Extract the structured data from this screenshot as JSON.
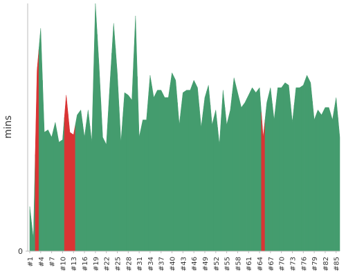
{
  "chart_data": {
    "type": "area",
    "y_label": "mins",
    "categories": [
      "#1",
      null,
      null,
      "#4",
      null,
      null,
      "#7",
      null,
      null,
      "#10",
      null,
      null,
      "#13",
      null,
      null,
      "#16",
      null,
      null,
      "#19",
      null,
      null,
      "#22",
      null,
      null,
      "#25",
      null,
      null,
      "#28",
      null,
      null,
      "#31",
      null,
      null,
      "#34",
      null,
      null,
      "#37",
      null,
      null,
      "#40",
      null,
      null,
      "#43",
      null,
      null,
      "#46",
      null,
      null,
      "#49",
      null,
      null,
      "#52",
      null,
      null,
      "#55",
      null,
      null,
      "#58",
      null,
      null,
      "#61",
      null,
      null,
      "#64",
      null,
      null,
      "#67",
      null,
      null,
      "#70",
      null,
      null,
      "#73",
      null,
      null,
      "#76",
      null,
      null,
      "#79",
      null,
      null,
      "#82",
      null,
      null,
      "#85",
      null
    ],
    "values": [
      18,
      5,
      73,
      90,
      48,
      49,
      46,
      52,
      44,
      45,
      63,
      48,
      47,
      55,
      57,
      46,
      57,
      44,
      100,
      75,
      46,
      43,
      68,
      92,
      72,
      44,
      64,
      63,
      61,
      95,
      46,
      53,
      53,
      71,
      62,
      65,
      65,
      62,
      62,
      72,
      69,
      51,
      64,
      65,
      65,
      69,
      66,
      50,
      62,
      67,
      51,
      57,
      43,
      65,
      51,
      57,
      70,
      64,
      58,
      60,
      63,
      66,
      64,
      66,
      46,
      60,
      66,
      53,
      66,
      66,
      68,
      67,
      52,
      66,
      66,
      67,
      71,
      68,
      53,
      57,
      55,
      58,
      58,
      53,
      62,
      46
    ],
    "point_colors": [
      "#449c6e",
      "#449c6e",
      "#d93434",
      "#449c6e",
      "#449c6e",
      "#449c6e",
      "#449c6e",
      "#449c6e",
      "#449c6e",
      "#449c6e",
      "#d93434",
      "#d93434",
      "#d93434",
      "#449c6e",
      "#449c6e",
      "#449c6e",
      "#449c6e",
      "#449c6e",
      "#449c6e",
      "#449c6e",
      "#449c6e",
      "#449c6e",
      "#449c6e",
      "#449c6e",
      "#449c6e",
      "#449c6e",
      "#449c6e",
      "#449c6e",
      "#449c6e",
      "#449c6e",
      "#449c6e",
      "#449c6e",
      "#449c6e",
      "#449c6e",
      "#449c6e",
      "#449c6e",
      "#449c6e",
      "#449c6e",
      "#449c6e",
      "#449c6e",
      "#449c6e",
      "#449c6e",
      "#449c6e",
      "#449c6e",
      "#449c6e",
      "#449c6e",
      "#449c6e",
      "#449c6e",
      "#449c6e",
      "#449c6e",
      "#449c6e",
      "#449c6e",
      "#449c6e",
      "#449c6e",
      "#449c6e",
      "#449c6e",
      "#449c6e",
      "#449c6e",
      "#449c6e",
      "#449c6e",
      "#449c6e",
      "#449c6e",
      "#449c6e",
      "#449c6e",
      "#d93434",
      "#449c6e",
      "#449c6e",
      "#449c6e",
      "#449c6e",
      "#449c6e",
      "#449c6e",
      "#449c6e",
      "#449c6e",
      "#449c6e",
      "#449c6e",
      "#449c6e",
      "#449c6e",
      "#449c6e",
      "#449c6e",
      "#449c6e",
      "#449c6e",
      "#449c6e",
      "#449c6e",
      "#449c6e",
      "#449c6e",
      "#449c6e"
    ],
    "ylim": [
      0,
      100
    ],
    "yticks": [
      0
    ]
  }
}
